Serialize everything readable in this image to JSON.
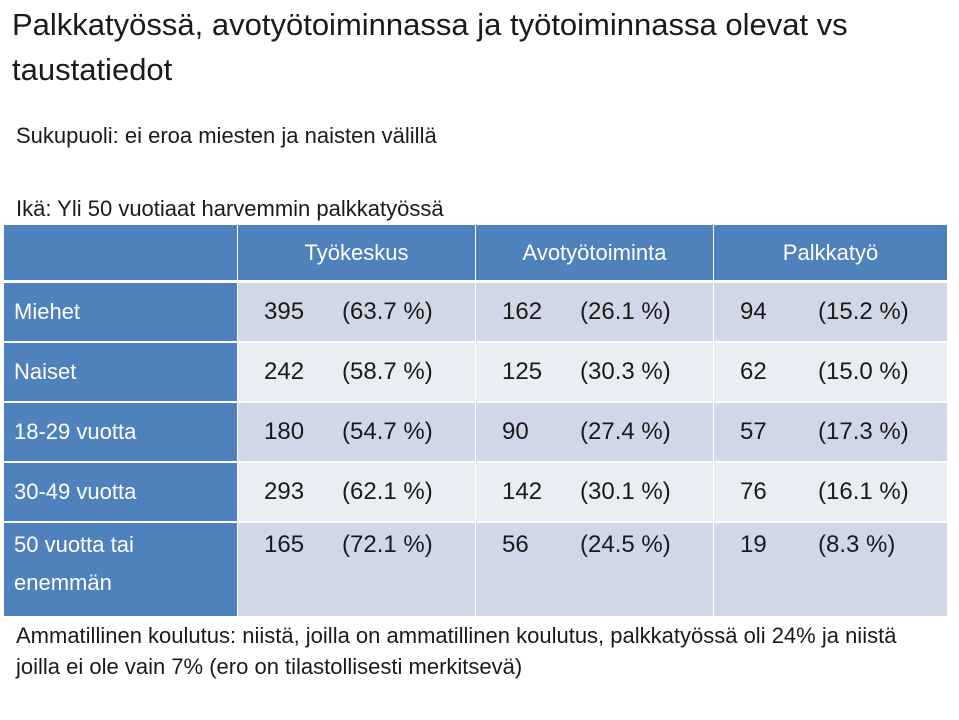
{
  "title": "Palkkatyössä, avotyötoiminnassa ja työtoiminnassa olevat vs taustatiedot",
  "gender_line": "Sukupuoli: ei eroa miesten ja naisten välillä",
  "age_line": "Ikä: Yli 50 vuotiaat harvemmin palkkatyössä",
  "table": {
    "headers": [
      "",
      "Työkeskus",
      "Avotyötoiminta",
      "Palkkatyö"
    ],
    "rows": [
      {
        "label": "Miehet",
        "cells": [
          {
            "n": "395",
            "p": "(63.7 %)"
          },
          {
            "n": "162",
            "p": "(26.1 %)"
          },
          {
            "n": "94",
            "p": "(15.2 %)"
          }
        ]
      },
      {
        "label": "Naiset",
        "cells": [
          {
            "n": "242",
            "p": "(58.7 %)"
          },
          {
            "n": "125",
            "p": "(30.3 %)"
          },
          {
            "n": "62",
            "p": "(15.0 %)"
          }
        ]
      },
      {
        "label": "18-29 vuotta",
        "cells": [
          {
            "n": "180",
            "p": "(54.7 %)"
          },
          {
            "n": "90",
            "p": "(27.4 %)"
          },
          {
            "n": "57",
            "p": "(17.3 %)"
          }
        ]
      },
      {
        "label": "30-49 vuotta",
        "cells": [
          {
            "n": "293",
            "p": "(62.1 %)"
          },
          {
            "n": "142",
            "p": "(30.1 %)"
          },
          {
            "n": "76",
            "p": "(16.1 %)"
          }
        ]
      },
      {
        "label": "50 vuotta tai enemmän",
        "cells": [
          {
            "n": "165",
            "p": "(72.1 %)"
          },
          {
            "n": "56",
            "p": "(24.5 %)"
          },
          {
            "n": "19",
            "p": "(8.3 %)"
          }
        ]
      }
    ]
  },
  "education_text": "Ammatillinen koulutus: niistä, joilla on ammatillinen koulutus, palkkatyössä oli 24% ja niistä joilla ei ole vain 7% (ero on tilastollisesti merkitsevä)"
}
